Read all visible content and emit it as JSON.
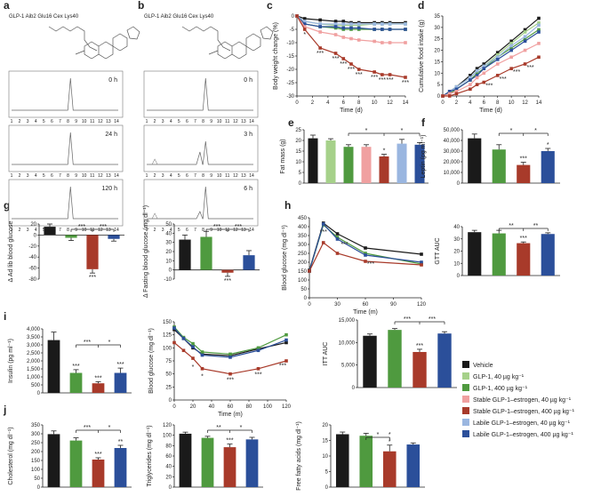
{
  "colors": {
    "vehicle": "#1a1a1a",
    "glp1_40": "#a6d18a",
    "glp1_400": "#4f9a3f",
    "stable_40": "#f0a0a0",
    "stable_400": "#a83a2a",
    "labile_40": "#9ab6e0",
    "labile_400": "#2b4f9a"
  },
  "legend": [
    {
      "label": "Vehicle",
      "color": "#1a1a1a"
    },
    {
      "label": "GLP-1, 40 µg kg⁻¹",
      "color": "#a6d18a"
    },
    {
      "label": "GLP-1, 400 µg kg⁻¹",
      "color": "#4f9a3f"
    },
    {
      "label": "Stable GLP-1–estrogen, 40 µg kg⁻¹",
      "color": "#f0a0a0"
    },
    {
      "label": "Stable GLP-1–estrogen, 400 µg kg⁻¹",
      "color": "#a83a2a"
    },
    {
      "label": "Labile GLP-1–estrogen, 40 µg kg⁻¹",
      "color": "#9ab6e0"
    },
    {
      "label": "Labile GLP-1–estrogen, 400 µg kg⁻¹",
      "color": "#2b4f9a"
    }
  ],
  "panel_letters": [
    "a",
    "b",
    "c",
    "d",
    "e",
    "f",
    "g",
    "h",
    "i",
    "j"
  ],
  "hplc": {
    "a": {
      "title": "GLP-1 Aib2 Glu16 Cex Lys40",
      "times": [
        "0 h",
        "24 h",
        "120 h"
      ],
      "ticks": [
        "1",
        "2",
        "3",
        "4",
        "5",
        "6",
        "7",
        "8",
        "9",
        "10",
        "11",
        "12",
        "13",
        "14"
      ]
    },
    "b": {
      "title": "GLP-1 Aib2 Glu16 Cex Lys40",
      "times": [
        "0 h",
        "3 h",
        "6 h"
      ],
      "ticks": [
        "1",
        "2",
        "3",
        "4",
        "5",
        "6",
        "7",
        "8",
        "9",
        "10",
        "11",
        "12",
        "13",
        "14"
      ]
    }
  },
  "chart_data": [
    {
      "id": "c",
      "type": "line",
      "ylabel": "Body weight change (%)",
      "xlabel": "Time (d)",
      "xlim": [
        0,
        14
      ],
      "ylim": [
        -30,
        0
      ],
      "xticks": [
        "0",
        "2",
        "4",
        "6",
        "8",
        "10",
        "12",
        "14"
      ],
      "yticks": [
        "0",
        "-5",
        "-10",
        "-15",
        "-20",
        "-25",
        "-30"
      ],
      "x": [
        0,
        1,
        3,
        5,
        6,
        7,
        8,
        10,
        11,
        12,
        14
      ],
      "series": [
        {
          "key": "vehicle",
          "values": [
            0,
            -1,
            -1.5,
            -2,
            -2,
            -2.5,
            -2.5,
            -2.5,
            -2.5,
            -2.5,
            -2.5
          ]
        },
        {
          "key": "glp1_40",
          "values": [
            0,
            -2,
            -3,
            -3.5,
            -3.5,
            -3.5,
            -3.5,
            -3,
            -3,
            -3,
            -3
          ]
        },
        {
          "key": "glp1_400",
          "values": [
            0,
            -3,
            -4,
            -4.5,
            -5,
            -5,
            -5,
            -5,
            -5,
            -5,
            -5
          ]
        },
        {
          "key": "labile_40",
          "values": [
            0,
            -2,
            -3,
            -3,
            -3,
            -3,
            -3,
            -3,
            -3,
            -3,
            -3
          ]
        },
        {
          "key": "labile_400",
          "values": [
            0,
            -3,
            -4,
            -4,
            -4.5,
            -4.5,
            -4.5,
            -5,
            -5,
            -5,
            -5
          ]
        },
        {
          "key": "stable_40",
          "values": [
            0,
            -4,
            -6,
            -7,
            -8,
            -8.5,
            -9,
            -9.5,
            -10,
            -10,
            -10
          ]
        },
        {
          "key": "stable_400",
          "values": [
            0,
            -5,
            -12,
            -14,
            -16,
            -18,
            -20,
            -21,
            -22,
            -22,
            -23
          ]
        }
      ],
      "annotations": [
        "*",
        "***"
      ]
    },
    {
      "id": "d",
      "type": "line",
      "ylabel": "Cumulative food intake (g)",
      "xlabel": "Time (d)",
      "xlim": [
        0,
        14
      ],
      "ylim": [
        0,
        35
      ],
      "xticks": [
        "0",
        "2",
        "4",
        "6",
        "8",
        "10",
        "12",
        "14"
      ],
      "yticks": [
        "0",
        "5",
        "10",
        "15",
        "20",
        "25",
        "30",
        "35"
      ],
      "x": [
        0,
        1,
        2,
        4,
        5,
        6,
        8,
        10,
        12,
        14
      ],
      "series": [
        {
          "key": "vehicle",
          "values": [
            0,
            2,
            4,
            9,
            12,
            14,
            19,
            24,
            29,
            34
          ]
        },
        {
          "key": "glp1_40",
          "values": [
            0,
            2,
            4,
            8,
            11,
            13,
            18,
            23,
            28,
            32
          ]
        },
        {
          "key": "glp1_400",
          "values": [
            0,
            1,
            3,
            7,
            10,
            12,
            17,
            21,
            25,
            29
          ]
        },
        {
          "key": "labile_40",
          "values": [
            0,
            2,
            4,
            8,
            11,
            13,
            17,
            22,
            26,
            31
          ]
        },
        {
          "key": "labile_400",
          "values": [
            0,
            2,
            3,
            7,
            9,
            12,
            16,
            20,
            24,
            28
          ]
        },
        {
          "key": "stable_40",
          "values": [
            0,
            1,
            2,
            5,
            8,
            10,
            14,
            17,
            20,
            23
          ]
        },
        {
          "key": "stable_400",
          "values": [
            0,
            0,
            1,
            3,
            5,
            6,
            9,
            12,
            14,
            17
          ]
        }
      ],
      "annotations": [
        "*",
        "***"
      ]
    },
    {
      "id": "e",
      "type": "bar",
      "ylabel": "Fat mass (g)",
      "ylim": [
        0,
        25
      ],
      "yticks": [
        "0",
        "5",
        "10",
        "15",
        "20",
        "25"
      ],
      "categories": [
        "vehicle",
        "glp1_40",
        "glp1_400",
        "stable_40",
        "stable_400",
        "labile_40",
        "labile_400"
      ],
      "values": [
        21,
        20,
        17,
        17,
        12.5,
        18.5,
        18
      ],
      "errors": [
        1.5,
        0.8,
        1,
        1,
        1,
        2,
        1
      ],
      "annotations": [
        "*",
        "*",
        "*"
      ]
    },
    {
      "id": "f",
      "type": "bar",
      "ylabel": "Leptin (pg ml⁻¹)",
      "ylim": [
        0,
        50000
      ],
      "yticks": [
        "0",
        "10,000",
        "20,000",
        "30,000",
        "40,000",
        "50,000"
      ],
      "categories": [
        "vehicle",
        "glp1_400",
        "stable_400",
        "labile_400"
      ],
      "values": [
        42000,
        31500,
        17000,
        30000
      ],
      "errors": [
        4000,
        4500,
        2500,
        2500
      ],
      "annotations": [
        "*",
        "*",
        "***",
        "*"
      ]
    },
    {
      "id": "g1",
      "type": "bar",
      "ylabel": "Δ Ad lib blood glucose",
      "ylim": [
        -80,
        20
      ],
      "yticks": [
        "20",
        "0",
        "-20",
        "-40",
        "-60",
        "-80"
      ],
      "categories": [
        "vehicle",
        "glp1_400",
        "stable_400",
        "labile_400"
      ],
      "values": [
        15,
        -5,
        -62,
        -7
      ],
      "errors": [
        5,
        5,
        7,
        4
      ],
      "annotations": [
        "***",
        "***",
        "***"
      ]
    },
    {
      "id": "g2",
      "type": "bar",
      "ylabel": "Δ Fasting blood glucose (mg dl⁻¹)",
      "ylim": [
        -10,
        50
      ],
      "yticks": [
        "50",
        "40",
        "30",
        "20",
        "10",
        "0",
        "-10"
      ],
      "categories": [
        "vehicle",
        "glp1_400",
        "stable_400",
        "labile_400"
      ],
      "values": [
        33,
        36,
        -3,
        16
      ],
      "errors": [
        5,
        6,
        4,
        5
      ],
      "annotations": [
        "***",
        "***",
        "***"
      ]
    },
    {
      "id": "h",
      "type": "line",
      "ylabel": "Blood glucose (mg dl⁻¹)",
      "xlabel": "Time (m)",
      "xlim": [
        0,
        120
      ],
      "ylim": [
        0,
        450
      ],
      "xticks": [
        "0",
        "30",
        "60",
        "90",
        "120"
      ],
      "yticks": [
        "0",
        "50",
        "100",
        "150",
        "200",
        "250",
        "300",
        "350",
        "400",
        "450"
      ],
      "x": [
        0,
        15,
        30,
        60,
        120
      ],
      "series": [
        {
          "key": "vehicle",
          "values": [
            155,
            420,
            360,
            280,
            245
          ]
        },
        {
          "key": "glp1_400",
          "values": [
            150,
            410,
            340,
            250,
            190
          ]
        },
        {
          "key": "labile_400",
          "values": [
            150,
            415,
            330,
            240,
            200
          ]
        },
        {
          "key": "stable_400",
          "values": [
            150,
            310,
            250,
            205,
            185
          ]
        }
      ],
      "annotations": [
        "***",
        "***",
        "***"
      ]
    },
    {
      "id": "h2",
      "type": "bar",
      "ylabel": "GTT AUC",
      "ylim": [
        0,
        40
      ],
      "yticks": [
        "0",
        "10",
        "20",
        "30",
        "40"
      ],
      "categories": [
        "vehicle",
        "glp1_400",
        "stable_400",
        "labile_400"
      ],
      "values": [
        35.5,
        34.5,
        26.5,
        34
      ],
      "errors": [
        1.5,
        2.5,
        1,
        1
      ],
      "annotations": [
        "**",
        "**",
        "***"
      ]
    },
    {
      "id": "i1",
      "type": "bar",
      "ylabel": "Insulin (pg ml⁻¹)",
      "ylim": [
        0,
        4000
      ],
      "yticks": [
        "0",
        "500",
        "1,000",
        "1,500",
        "2,000",
        "2,500",
        "3,000",
        "3,500",
        "4,000"
      ],
      "categories": [
        "vehicle",
        "glp1_400",
        "stable_400",
        "labile_400"
      ],
      "values": [
        3300,
        1250,
        600,
        1250
      ],
      "errors": [
        500,
        200,
        100,
        300
      ],
      "annotations": [
        "***",
        "*",
        "*",
        "***",
        "***"
      ]
    },
    {
      "id": "i2",
      "type": "line",
      "ylabel": "Blood glucose (mg dl⁻¹)",
      "xlabel": "Time (m)",
      "xlim": [
        0,
        120
      ],
      "ylim": [
        0,
        150
      ],
      "xticks": [
        "0",
        "20",
        "40",
        "60",
        "80",
        "100",
        "120"
      ],
      "yticks": [
        "0",
        "25",
        "50",
        "75",
        "100",
        "125",
        "150"
      ],
      "x": [
        0,
        10,
        20,
        30,
        60,
        90,
        120
      ],
      "series": [
        {
          "key": "vehicle",
          "values": [
            135,
            118,
            100,
            88,
            85,
            98,
            110
          ]
        },
        {
          "key": "glp1_400",
          "values": [
            140,
            120,
            108,
            92,
            88,
            100,
            125
          ]
        },
        {
          "key": "labile_400",
          "values": [
            138,
            118,
            102,
            86,
            82,
            95,
            115
          ]
        },
        {
          "key": "stable_400",
          "values": [
            110,
            95,
            80,
            60,
            50,
            60,
            75
          ]
        }
      ],
      "annotations": [
        "*",
        "*",
        "***",
        "***",
        "***"
      ]
    },
    {
      "id": "i3",
      "type": "bar",
      "ylabel": "ITT AUC",
      "ylim": [
        0,
        15000
      ],
      "yticks": [
        "0",
        "5,000",
        "10,000",
        "15,000"
      ],
      "categories": [
        "vehicle",
        "glp1_400",
        "stable_400",
        "labile_400"
      ],
      "values": [
        11500,
        12800,
        7900,
        12000
      ],
      "errors": [
        400,
        300,
        600,
        400
      ],
      "annotations": [
        "***",
        "***",
        "***"
      ]
    },
    {
      "id": "j1",
      "type": "bar",
      "ylabel": "Cholesterol (mg dl⁻¹)",
      "ylim": [
        0,
        350
      ],
      "yticks": [
        "0",
        "50",
        "100",
        "150",
        "200",
        "250",
        "300",
        "350"
      ],
      "categories": [
        "vehicle",
        "glp1_400",
        "stable_400",
        "labile_400"
      ],
      "values": [
        298,
        262,
        155,
        220
      ],
      "errors": [
        18,
        15,
        10,
        15
      ],
      "annotations": [
        "***",
        "*",
        "***",
        "**"
      ]
    },
    {
      "id": "j2",
      "type": "bar",
      "ylabel": "Triglycerides (mg dl⁻¹)",
      "ylim": [
        0,
        120
      ],
      "yticks": [
        "0",
        "20",
        "40",
        "60",
        "80",
        "100",
        "120"
      ],
      "categories": [
        "vehicle",
        "glp1_400",
        "stable_400",
        "labile_400"
      ],
      "values": [
        103,
        95,
        77,
        92
      ],
      "errors": [
        3,
        3,
        6,
        4
      ],
      "annotations": [
        "**",
        "*",
        "***"
      ]
    },
    {
      "id": "j3",
      "type": "bar",
      "ylabel": "Free fatty acids (mg dl⁻¹)",
      "ylim": [
        0,
        20
      ],
      "yticks": [
        "0",
        "5",
        "10",
        "15",
        "20"
      ],
      "categories": [
        "vehicle",
        "glp1_400",
        "stable_400",
        "labile_400"
      ],
      "values": [
        17,
        16.5,
        11.5,
        13.7
      ],
      "errors": [
        0.7,
        0.8,
        2,
        0.5
      ],
      "annotations": [
        "*",
        "*"
      ]
    }
  ]
}
